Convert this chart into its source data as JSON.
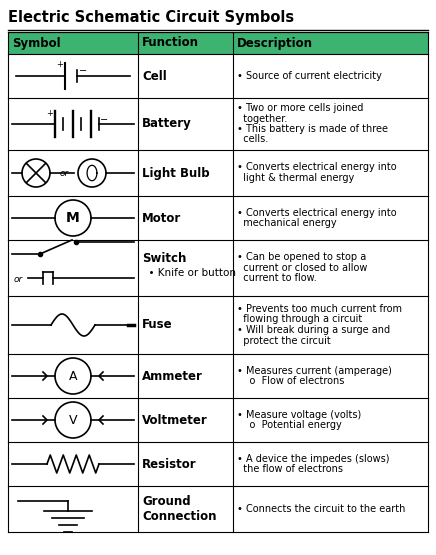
{
  "title": "Electric Schematic Circuit Symbols",
  "header_bg": "#3cb371",
  "col_headers": [
    "Symbol",
    "Function",
    "Description"
  ],
  "rows": [
    {
      "function": "Cell",
      "description": [
        "• Source of current electricity"
      ],
      "desc_styles": [
        [
          "normal"
        ]
      ]
    },
    {
      "function": "Battery",
      "description": [
        "• Two or more cells joined",
        "  together.",
        "• This battery is made of three",
        "  cells."
      ],
      "desc_styles": [
        [
          "normal"
        ],
        [
          "normal"
        ],
        [
          "normal"
        ],
        [
          "normal"
        ]
      ]
    },
    {
      "function": "Light Bulb",
      "description": [
        "• Converts electrical energy into",
        "  light & thermal energy"
      ],
      "desc_styles": [
        [
          "normal"
        ],
        [
          "normal"
        ]
      ]
    },
    {
      "function": "Motor",
      "description": [
        "• Converts electrical energy into",
        "  mechanical energy"
      ],
      "desc_styles": [
        [
          "normal"
        ],
        [
          "normal"
        ]
      ]
    },
    {
      "function": "Switch",
      "function_sub": "  • Knife or button",
      "description": [
        "• Can be opened to stop a",
        "  current or closed to allow",
        "  current to flow."
      ],
      "desc_styles": [
        [
          "normal"
        ],
        [
          "normal"
        ],
        [
          "normal"
        ]
      ]
    },
    {
      "function": "Fuse",
      "description": [
        "• Prevents too much current from",
        "  flowing through a circuit",
        "• Will break during a surge and",
        "  protect the circuit"
      ],
      "desc_styles": [
        [
          "normal"
        ],
        [
          "normal"
        ],
        [
          "normal"
        ],
        [
          "normal"
        ]
      ]
    },
    {
      "function": "Ammeter",
      "description": [
        "• Measures current (amperage)",
        "    o  Flow of electrons"
      ],
      "desc_styles": [
        [
          "normal"
        ],
        [
          "normal"
        ]
      ]
    },
    {
      "function": "Voltmeter",
      "description": [
        "• Measure voltage (volts)",
        "    o  Potential energy"
      ],
      "desc_styles": [
        [
          "normal"
        ],
        [
          "normal"
        ]
      ]
    },
    {
      "function": "Resistor",
      "description": [
        "• A device the impedes (slows)",
        "  the flow of electrons"
      ],
      "desc_styles": [
        [
          "normal"
        ],
        [
          "normal"
        ]
      ]
    },
    {
      "function": "Ground\nConnection",
      "description": [
        "• Connects the circuit to the earth"
      ],
      "desc_styles": [
        [
          "normal"
        ]
      ]
    }
  ],
  "border_color": "#000000",
  "text_color": "#000000",
  "bg_color": "#ffffff"
}
